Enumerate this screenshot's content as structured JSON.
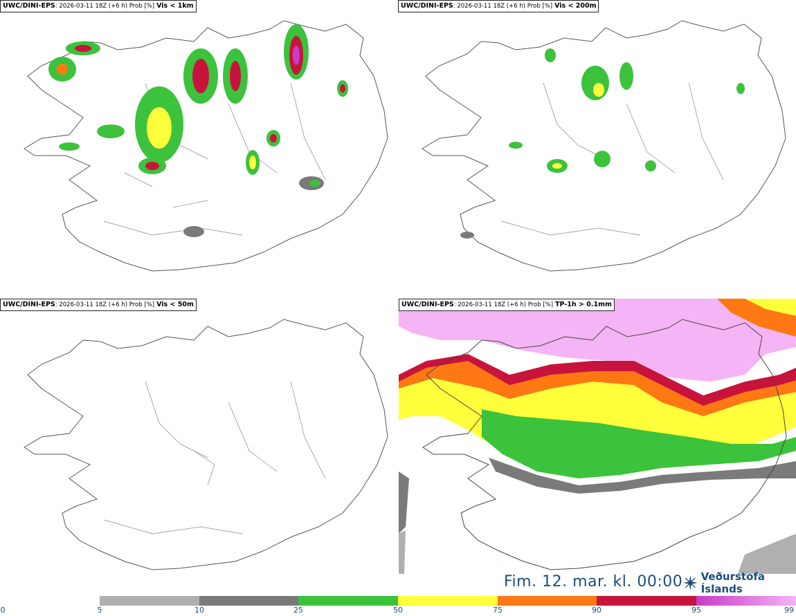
{
  "panels": [
    {
      "model": "UWC/DINI-EPS",
      "meta": ": 2026-03-11 18Z (+6 h) Prob [%]",
      "threshold": "Vis < 1km"
    },
    {
      "model": "UWC/DINI-EPS",
      "meta": ": 2026-03-11 18Z (+6 h) Prob [%]",
      "threshold": "Vis < 200m"
    },
    {
      "model": "UWC/DINI-EPS",
      "meta": ": 2026-03-11 18Z (+6 h) Prob [%]",
      "threshold": "Vis < 50m"
    },
    {
      "model": "UWC/DINI-EPS",
      "meta": ": 2026-03-11 18Z (+6 h) Prob [%]",
      "threshold": "TP-1h > 0.1mm"
    }
  ],
  "footer": {
    "date": "Fim. 12. mar. kl. 00:00",
    "brand": "Veðurstofa Íslands"
  },
  "colorbar": {
    "ticks": [
      "0",
      "5",
      "10",
      "25",
      "50",
      "75",
      "90",
      "95",
      "99"
    ],
    "colors": [
      "#ffffff",
      "#b0b0b0",
      "#7a7a7a",
      "#3cc23c",
      "#ffff3c",
      "#ff7814",
      "#c8143c",
      "#c83cc8",
      "#f5b4f5"
    ]
  }
}
